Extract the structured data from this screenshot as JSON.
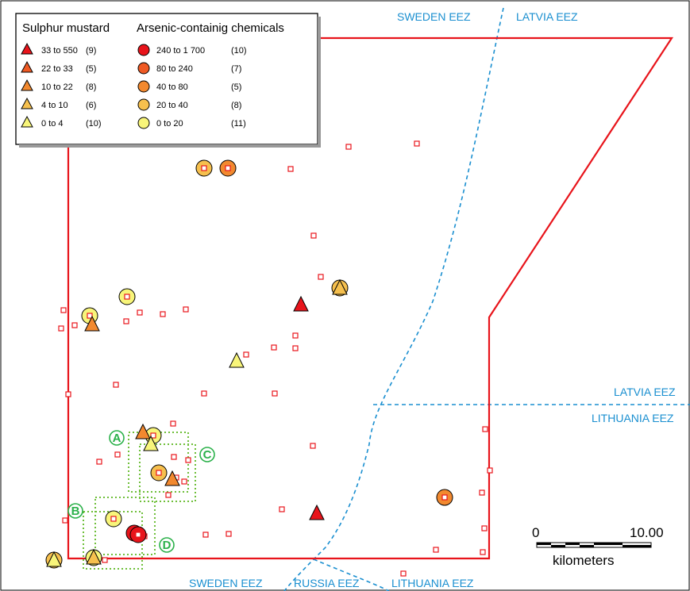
{
  "legend": {
    "mustard_title": "Sulphur mustard",
    "arsenic_title": "Arsenic-containig chemicals",
    "mustard_classes": [
      {
        "range": "33 to 550",
        "count": "(9)",
        "color": "#e8141b"
      },
      {
        "range": "22 to  33",
        "count": "(5)",
        "color": "#ef5a24"
      },
      {
        "range": "10 to  22",
        "count": "(8)",
        "color": "#f2892f"
      },
      {
        "range": " 4 to  10",
        "count": "(6)",
        "color": "#f6c04e"
      },
      {
        "range": " 0 to   4",
        "count": "(10)",
        "color": "#f8f57a"
      }
    ],
    "arsenic_classes": [
      {
        "range": "240 to 1 700",
        "count": "(10)",
        "color": "#e8141b"
      },
      {
        "range": " 80 to   240",
        "count": "(7)",
        "color": "#ef5a24"
      },
      {
        "range": " 40 to    80",
        "count": "(5)",
        "color": "#f2892f"
      },
      {
        "range": " 20 to    40",
        "count": "(8)",
        "color": "#f6c04e"
      },
      {
        "range": "  0 to    20",
        "count": "(11)",
        "color": "#f8f57a"
      }
    ]
  },
  "eez_labels": {
    "sweden_top": "SWEDEN EEZ",
    "latvia_top": "LATVIA EEZ",
    "latvia_right": "LATVIA EEZ",
    "lithuania_right": "LITHUANIA EEZ",
    "sweden_bottom": "SWEDEN EEZ",
    "russia_bottom": "RUSSIA EEZ",
    "lithuania_bottom": "LITHUANIA EEZ"
  },
  "area_labels": [
    "A",
    "B",
    "C",
    "D"
  ],
  "scale_bar": {
    "start": "0",
    "end": "10.00",
    "unit": "kilometers"
  },
  "colors": {
    "boundary": "#e8141b",
    "eez_line": "#1a8fd0",
    "study_area": "#6fbf3a",
    "sample_square": "#e8141b"
  }
}
